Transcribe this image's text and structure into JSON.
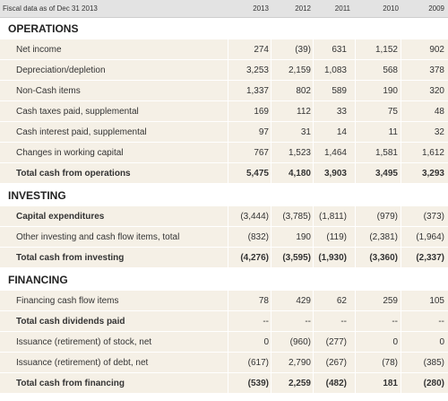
{
  "header": {
    "title": "Fiscal data as of Dec 31 2013",
    "years": [
      "2013",
      "2012",
      "2011",
      "2010",
      "2009"
    ]
  },
  "sections": {
    "operations": "OPERATIONS",
    "investing": "INVESTING",
    "financing": "FINANCING"
  },
  "rows": [
    {
      "label": "Net income",
      "values": [
        "274",
        "(39)",
        "631",
        "1,152",
        "902"
      ]
    },
    {
      "label": "Depreciation/depletion",
      "values": [
        "3,253",
        "2,159",
        "1,083",
        "568",
        "378"
      ]
    },
    {
      "label": "Non-Cash items",
      "values": [
        "1,337",
        "802",
        "589",
        "190",
        "320"
      ]
    },
    {
      "label": "Cash taxes paid, supplemental",
      "values": [
        "169",
        "112",
        "33",
        "75",
        "48"
      ]
    },
    {
      "label": "Cash interest paid, supplemental",
      "values": [
        "97",
        "31",
        "14",
        "11",
        "32"
      ]
    },
    {
      "label": "Changes in working capital",
      "values": [
        "767",
        "1,523",
        "1,464",
        "1,581",
        "1,612"
      ]
    },
    {
      "label": "Total cash from operations",
      "values": [
        "5,475",
        "4,180",
        "3,903",
        "3,495",
        "3,293"
      ]
    },
    {
      "label": "Capital expenditures",
      "values": [
        "(3,444)",
        "(3,785)",
        "(1,811)",
        "(979)",
        "(373)"
      ]
    },
    {
      "label": "Other investing and cash flow items, total",
      "values": [
        "(832)",
        "190",
        "(119)",
        "(2,381)",
        "(1,964)"
      ]
    },
    {
      "label": "Total cash from investing",
      "values": [
        "(4,276)",
        "(3,595)",
        "(1,930)",
        "(3,360)",
        "(2,337)"
      ]
    },
    {
      "label": "Financing cash flow items",
      "values": [
        "78",
        "429",
        "62",
        "259",
        "105"
      ]
    },
    {
      "label": "Total cash dividends paid",
      "values": [
        "--",
        "--",
        "--",
        "--",
        "--"
      ]
    },
    {
      "label": "Issuance (retirement) of stock, net",
      "values": [
        "0",
        "(960)",
        "(277)",
        "0",
        "0"
      ]
    },
    {
      "label": "Issuance (retirement) of debt, net",
      "values": [
        "(617)",
        "2,790",
        "(267)",
        "(78)",
        "(385)"
      ]
    },
    {
      "label": "Total cash from financing",
      "values": [
        "(539)",
        "2,259",
        "(482)",
        "181",
        "(280)"
      ]
    }
  ]
}
